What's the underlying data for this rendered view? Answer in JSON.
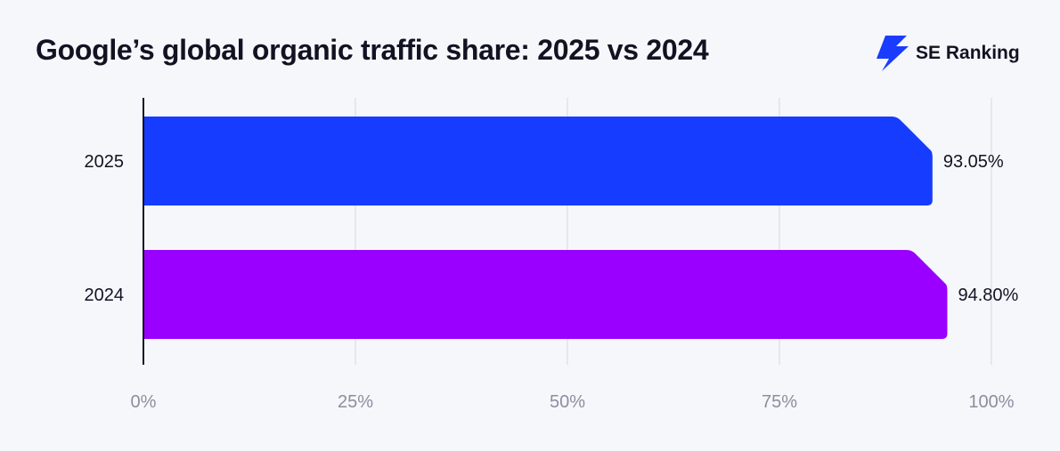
{
  "title": "Google’s global organic traffic share: 2025 vs 2024",
  "brand": {
    "name": "SE Ranking",
    "icon": "se-ranking-logo-icon",
    "color": "#1a3cff"
  },
  "chart_data": {
    "type": "bar",
    "orientation": "horizontal",
    "title": "Google’s global organic traffic share: 2025 vs 2024",
    "categories": [
      "2025",
      "2024"
    ],
    "values": [
      93.05,
      94.8
    ],
    "value_labels": [
      "93.05%",
      "94.80%"
    ],
    "colors": [
      "#163cff",
      "#9900ff"
    ],
    "xlim": [
      0,
      100
    ],
    "xticks": [
      0,
      25,
      50,
      75,
      100
    ],
    "xtick_labels": [
      "0%",
      "25%",
      "50%",
      "75%",
      "100%"
    ],
    "xlabel": "",
    "ylabel": "",
    "grid": true
  }
}
